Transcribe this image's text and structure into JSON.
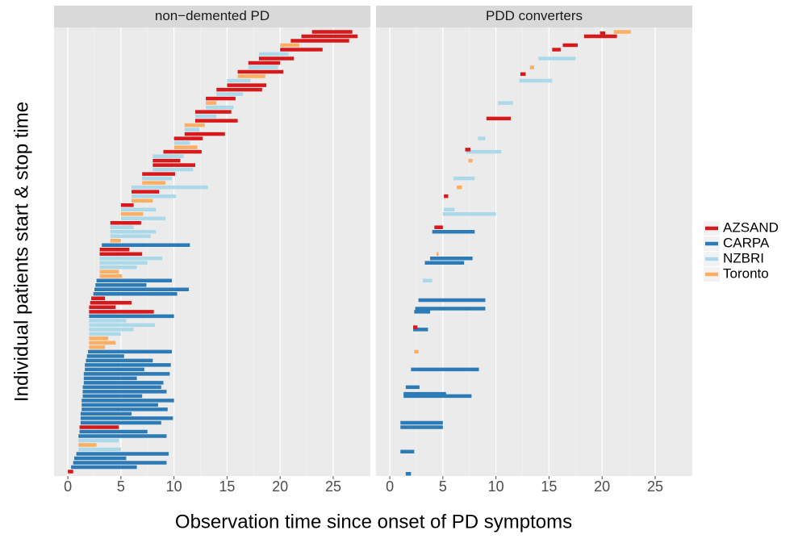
{
  "chart_data": {
    "type": "segment",
    "y_label": "Individual patients start & stop time",
    "x_label": "Observation time since onset of PD symptoms",
    "xlim": [
      -1.3,
      28.5
    ],
    "xticks": [
      0,
      5,
      10,
      15,
      20,
      25
    ],
    "ylim": [
      0,
      101
    ],
    "grid": true,
    "legend_position": "right",
    "series": [
      {
        "name": "AZSAND",
        "color": "#d7191c"
      },
      {
        "name": "CARPA",
        "color": "#2c7bb6"
      },
      {
        "name": "NZBRI",
        "color": "#abd9e9"
      },
      {
        "name": "Toronto",
        "color": "#fdae61"
      }
    ],
    "panels": [
      {
        "title": "non−demented PD",
        "y": [
          1,
          2,
          3,
          4,
          5,
          6,
          7,
          8,
          9,
          10,
          11,
          12,
          13,
          14,
          15,
          16,
          17,
          18,
          19,
          20,
          21,
          22,
          23,
          24,
          25,
          26,
          27,
          28,
          29,
          30,
          31,
          32,
          33,
          34,
          35,
          36,
          37,
          38,
          39,
          40,
          41,
          42,
          43,
          44,
          45,
          46,
          47,
          48,
          49,
          50,
          51,
          52,
          53,
          54,
          55,
          56,
          57,
          58,
          59,
          60,
          61,
          62,
          63,
          64,
          65,
          66,
          67,
          68,
          69,
          70,
          71,
          72,
          73,
          74,
          75,
          76,
          77,
          78,
          79,
          80,
          81,
          82,
          83,
          84,
          85,
          86,
          87,
          88,
          89,
          90,
          91,
          92,
          93,
          94,
          95,
          96,
          97,
          98,
          99,
          100
        ],
        "start": [
          0,
          0.3,
          0.5,
          0.6,
          0.8,
          1,
          1,
          1,
          1,
          1.1,
          1.1,
          1.2,
          1.2,
          1.2,
          1.3,
          1.3,
          1.3,
          1.4,
          1.4,
          1.4,
          1.5,
          1.5,
          1.5,
          1.6,
          1.6,
          1.7,
          1.8,
          1.9,
          2,
          2,
          2,
          2,
          2,
          2,
          2,
          2,
          2,
          2,
          2.1,
          2.2,
          2.4,
          2.5,
          2.6,
          2.7,
          3,
          3,
          3,
          3,
          3,
          3,
          3,
          3.2,
          4,
          4,
          4,
          4,
          4,
          5,
          5,
          5,
          5,
          6,
          6,
          6,
          6,
          7,
          7,
          7,
          8,
          8,
          8,
          8,
          9,
          10,
          10,
          10,
          11,
          11,
          11,
          12,
          12,
          12,
          13,
          13,
          13,
          14,
          14,
          15,
          15,
          16,
          16,
          17,
          17,
          18,
          18,
          20,
          20,
          21,
          22,
          23
        ],
        "stop": [
          0.5,
          6.5,
          9.3,
          5.5,
          9.5,
          5,
          2.7,
          4.8,
          9.3,
          7.5,
          4.8,
          8.8,
          9.9,
          6,
          9.4,
          8.5,
          10,
          7,
          9.3,
          8.8,
          9,
          6.5,
          9.6,
          7.2,
          9.7,
          8,
          5.3,
          9.8,
          3.5,
          4.5,
          3.8,
          5,
          6.2,
          8.2,
          5.5,
          10,
          8.1,
          4.5,
          6,
          3.5,
          10.3,
          11.4,
          7.4,
          9.8,
          5.1,
          4.8,
          6.5,
          7.5,
          8.9,
          7,
          5.8,
          11.5,
          5,
          7.8,
          8.3,
          6.2,
          6.9,
          9.2,
          7.1,
          8.3,
          6.2,
          8,
          10.2,
          8.6,
          13.2,
          9.2,
          9.8,
          10.1,
          11.8,
          12,
          10.6,
          10.9,
          12.6,
          12.2,
          11.5,
          12.7,
          14.8,
          12.4,
          12.9,
          16,
          14,
          15.4,
          15.6,
          14,
          15.8,
          16.5,
          18.3,
          18.7,
          17.2,
          18.6,
          20.3,
          19.8,
          20,
          21.3,
          20.8,
          24,
          21.8,
          26.5,
          27.3,
          26.8
        ],
        "group": [
          "AZSAND",
          "CARPA",
          "CARPA",
          "CARPA",
          "CARPA",
          "NZBRI",
          "Toronto",
          "NZBRI",
          "CARPA",
          "CARPA",
          "AZSAND",
          "CARPA",
          "CARPA",
          "CARPA",
          "CARPA",
          "CARPA",
          "CARPA",
          "CARPA",
          "CARPA",
          "CARPA",
          "CARPA",
          "CARPA",
          "CARPA",
          "CARPA",
          "CARPA",
          "CARPA",
          "CARPA",
          "CARPA",
          "Toronto",
          "Toronto",
          "Toronto",
          "NZBRI",
          "NZBRI",
          "NZBRI",
          "NZBRI",
          "CARPA",
          "AZSAND",
          "AZSAND",
          "AZSAND",
          "AZSAND",
          "CARPA",
          "CARPA",
          "CARPA",
          "CARPA",
          "Toronto",
          "Toronto",
          "NZBRI",
          "NZBRI",
          "NZBRI",
          "AZSAND",
          "AZSAND",
          "CARPA",
          "Toronto",
          "NZBRI",
          "NZBRI",
          "NZBRI",
          "AZSAND",
          "NZBRI",
          "Toronto",
          "NZBRI",
          "AZSAND",
          "Toronto",
          "NZBRI",
          "AZSAND",
          "NZBRI",
          "Toronto",
          "NZBRI",
          "AZSAND",
          "NZBRI",
          "AZSAND",
          "AZSAND",
          "NZBRI",
          "AZSAND",
          "Toronto",
          "NZBRI",
          "AZSAND",
          "AZSAND",
          "NZBRI",
          "Toronto",
          "AZSAND",
          "NZBRI",
          "AZSAND",
          "NZBRI",
          "Toronto",
          "AZSAND",
          "NZBRI",
          "AZSAND",
          "AZSAND",
          "NZBRI",
          "Toronto",
          "AZSAND",
          "NZBRI",
          "AZSAND",
          "AZSAND",
          "NZBRI",
          "AZSAND",
          "Toronto",
          "AZSAND",
          "AZSAND",
          "AZSAND"
        ]
      },
      {
        "title": "PDD converters",
        "y": [
          0.5,
          5.5,
          11,
          12,
          18,
          18.5,
          20,
          24,
          28,
          33,
          33.5,
          37,
          37.7,
          39.6,
          44,
          48,
          49,
          50,
          55,
          56,
          59,
          60,
          63,
          65,
          67,
          71,
          73,
          73.5,
          76,
          80.5,
          84,
          89,
          90.5,
          92,
          94,
          96,
          97,
          99,
          99.7,
          100
        ],
        "start": [
          1.5,
          1,
          1,
          1,
          1.3,
          1.3,
          1.5,
          2,
          2.3,
          2.2,
          2.2,
          2.3,
          2.4,
          2.7,
          3.1,
          3.3,
          3.8,
          4.4,
          4,
          4.2,
          5,
          5.1,
          5.1,
          6.3,
          6,
          7.4,
          7.2,
          7.1,
          8.3,
          9.1,
          10.2,
          12.2,
          12.3,
          13.2,
          14,
          15.3,
          16.3,
          18.3,
          19.8,
          21.1
        ],
        "stop": [
          2,
          2.3,
          5,
          5,
          7.7,
          5.3,
          2.8,
          8.4,
          2.7,
          3.6,
          2.6,
          3.8,
          9,
          9,
          4,
          7,
          7.8,
          4.6,
          8,
          5,
          10,
          6.1,
          5.5,
          6.8,
          8,
          7.8,
          10.5,
          7.6,
          9,
          11.4,
          11.6,
          15.3,
          12.8,
          13.6,
          17.5,
          16.1,
          17.7,
          21.4,
          20.3,
          22.7
        ],
        "group": [
          "CARPA",
          "CARPA",
          "CARPA",
          "CARPA",
          "CARPA",
          "CARPA",
          "CARPA",
          "CARPA",
          "Toronto",
          "CARPA",
          "AZSAND",
          "CARPA",
          "CARPA",
          "CARPA",
          "NZBRI",
          "CARPA",
          "CARPA",
          "Toronto",
          "CARPA",
          "AZSAND",
          "NZBRI",
          "NZBRI",
          "AZSAND",
          "Toronto",
          "NZBRI",
          "Toronto",
          "NZBRI",
          "AZSAND",
          "NZBRI",
          "AZSAND",
          "NZBRI",
          "NZBRI",
          "AZSAND",
          "Toronto",
          "NZBRI",
          "AZSAND",
          "AZSAND",
          "AZSAND",
          "AZSAND",
          "Toronto"
        ]
      }
    ]
  }
}
